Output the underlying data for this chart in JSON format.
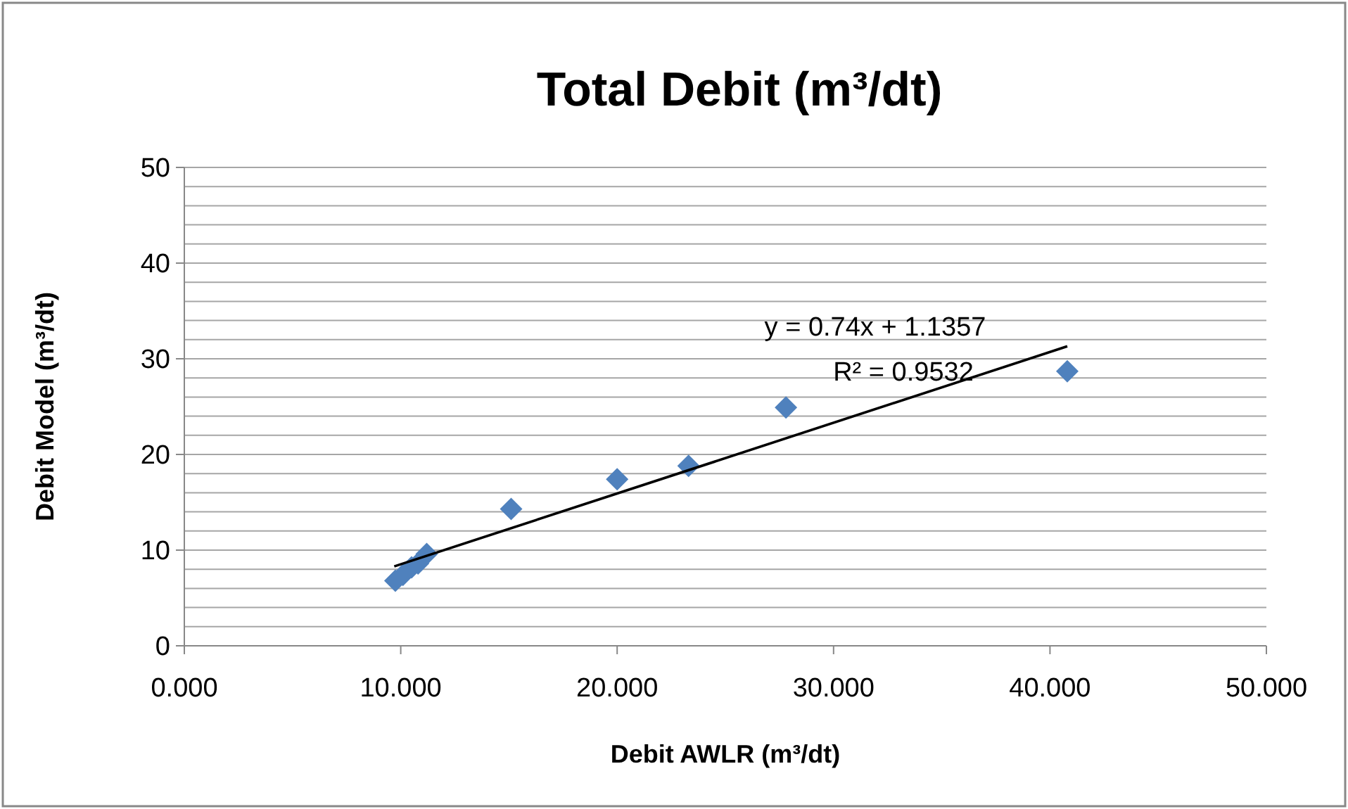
{
  "chart_data": {
    "type": "scatter",
    "title": "Total Debit (m³/dt)",
    "xlabel": "Debit AWLR (m³/dt)",
    "ylabel": "Debit Model (m³/dt)",
    "xlim": [
      0,
      50
    ],
    "xticks": [
      {
        "value": 0,
        "label": "0.000"
      },
      {
        "value": 10,
        "label": "10.000"
      },
      {
        "value": 20,
        "label": "20.000"
      },
      {
        "value": 30,
        "label": "30.000"
      },
      {
        "value": 40,
        "label": "40.000"
      },
      {
        "value": 50,
        "label": "50.000"
      }
    ],
    "ylim": [
      0,
      50
    ],
    "yticks": [
      0,
      {
        "value": 2,
        "label": null
      },
      {
        "value": 4,
        "label": null
      },
      {
        "value": 6,
        "label": null
      },
      {
        "value": 8,
        "label": null
      },
      10,
      {
        "value": 12,
        "label": null
      },
      {
        "value": 14,
        "label": null
      },
      {
        "value": 16,
        "label": null
      },
      {
        "value": 18,
        "label": null
      },
      20,
      {
        "value": 22,
        "label": null
      },
      {
        "value": 24,
        "label": null
      },
      {
        "value": 26,
        "label": null
      },
      {
        "value": 28,
        "label": null
      },
      30,
      {
        "value": 32,
        "label": null
      },
      {
        "value": 34,
        "label": null
      },
      {
        "value": 36,
        "label": null
      },
      {
        "value": 38,
        "label": null
      },
      40,
      {
        "value": 42,
        "label": null
      },
      {
        "value": 44,
        "label": null
      },
      {
        "value": 46,
        "label": null
      },
      {
        "value": 48,
        "label": null
      },
      50
    ],
    "grid": "y",
    "series": [
      {
        "color": "#4f81bd",
        "marker": "diamond",
        "x": [
          9.75,
          10.1,
          10.5,
          10.8,
          11.2,
          15.1,
          20.0,
          23.3,
          27.8,
          40.8
        ],
        "values": [
          6.8,
          7.4,
          8.2,
          8.6,
          9.6,
          14.3,
          17.4,
          18.8,
          24.9,
          28.7
        ]
      },
      {
        "type": "line",
        "color": "#000000",
        "marker": "none",
        "line_style": "solid",
        "x": [
          9.7,
          40.8
        ],
        "values": [
          8.3,
          31.3
        ]
      }
    ],
    "annotations": [
      "y = 0.74x + 1.1357",
      "R² = 0.9532"
    ]
  }
}
